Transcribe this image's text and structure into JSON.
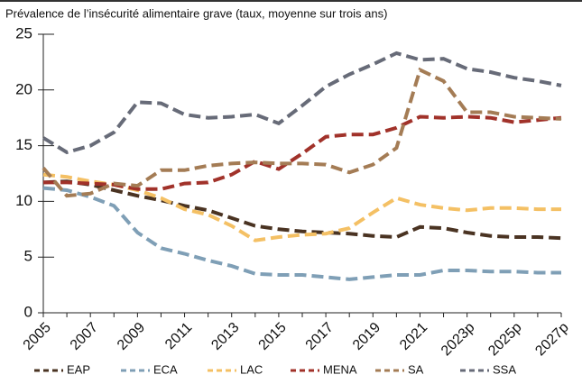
{
  "chart_data": {
    "type": "line",
    "title": "Prévalence de l’insécurité alimentaire grave (taux, moyenne sur trois ans)",
    "categories": [
      "2005",
      null,
      "2007",
      null,
      "2009",
      null,
      "2011",
      null,
      "2013",
      null,
      "2015",
      null,
      "2017",
      null,
      "2019",
      null,
      "2021",
      null,
      "2023p",
      null,
      "2025p",
      null,
      "2027p"
    ],
    "ylim": [
      0,
      25
    ],
    "yticks": [
      0,
      5,
      10,
      15,
      20,
      25
    ],
    "grid": false,
    "legend": "bottom",
    "dashed": true,
    "series": [
      {
        "name": "EAP",
        "color": "#4a3322",
        "values": [
          11.7,
          11.8,
          11.5,
          11.0,
          10.5,
          10.1,
          9.6,
          9.2,
          8.5,
          7.8,
          7.5,
          7.3,
          7.2,
          7.1,
          6.9,
          6.8,
          7.7,
          7.6,
          7.2,
          6.9,
          6.8,
          6.8,
          6.7
        ]
      },
      {
        "name": "ECA",
        "color": "#7f9fb6",
        "values": [
          11.2,
          11.0,
          10.4,
          9.6,
          7.2,
          5.8,
          5.3,
          4.7,
          4.2,
          3.5,
          3.4,
          3.4,
          3.2,
          3.0,
          3.2,
          3.4,
          3.4,
          3.8,
          3.8,
          3.7,
          3.7,
          3.6,
          3.6
        ]
      },
      {
        "name": "LAC",
        "color": "#f4c064",
        "values": [
          12.4,
          12.2,
          11.8,
          11.5,
          11.0,
          10.3,
          9.3,
          8.8,
          7.8,
          6.5,
          6.8,
          7.0,
          7.1,
          7.6,
          9.0,
          10.3,
          9.7,
          9.4,
          9.2,
          9.4,
          9.4,
          9.3,
          9.3
        ]
      },
      {
        "name": "MENA",
        "color": "#a1322a",
        "values": [
          11.7,
          11.7,
          11.6,
          11.5,
          11.1,
          11.1,
          11.6,
          11.7,
          12.4,
          13.6,
          12.9,
          14.3,
          15.8,
          16.0,
          16.0,
          16.6,
          17.6,
          17.5,
          17.6,
          17.5,
          17.1,
          17.3,
          17.5
        ]
      },
      {
        "name": "SA",
        "color": "#a47c55",
        "values": [
          13.0,
          10.5,
          10.7,
          11.6,
          11.4,
          12.8,
          12.8,
          13.2,
          13.4,
          13.5,
          13.4,
          13.4,
          13.3,
          12.6,
          13.3,
          14.8,
          21.8,
          20.8,
          18.0,
          18.0,
          17.6,
          17.5,
          17.4
        ]
      },
      {
        "name": "SSA",
        "color": "#676b78",
        "values": [
          15.7,
          14.4,
          15.0,
          16.2,
          18.9,
          18.8,
          17.8,
          17.5,
          17.6,
          17.8,
          17.0,
          18.6,
          20.3,
          21.4,
          22.3,
          23.3,
          22.7,
          22.8,
          21.9,
          21.6,
          21.1,
          20.8,
          20.4
        ]
      }
    ]
  }
}
